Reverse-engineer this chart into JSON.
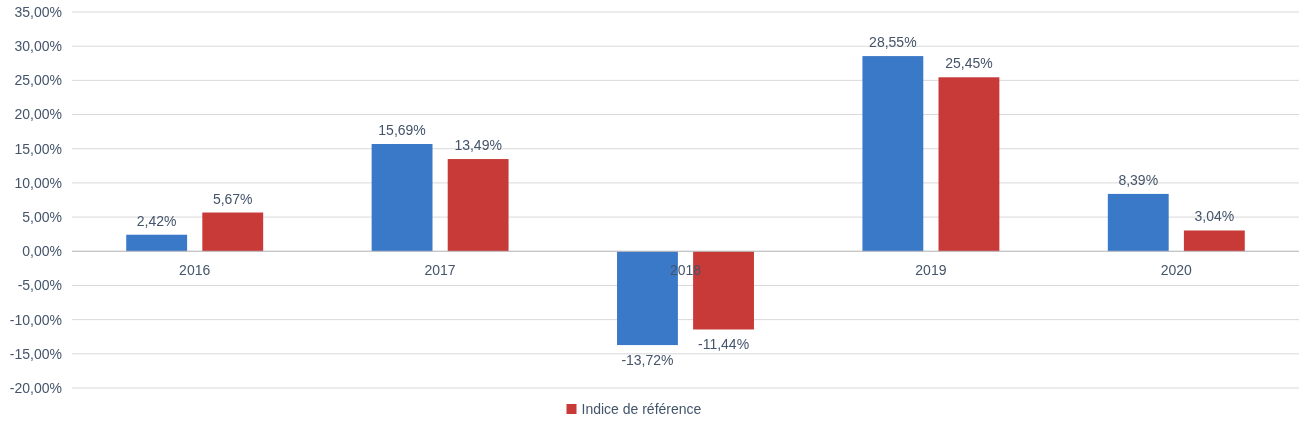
{
  "chart_data": {
    "type": "bar",
    "categories": [
      "2016",
      "2017",
      "2018",
      "2019",
      "2020"
    ],
    "series": [
      {
        "color": "#3a78c8",
        "values": [
          2.42,
          15.69,
          -13.72,
          28.55,
          8.39
        ],
        "value_labels": [
          "2,42%",
          "15,69%",
          "-13,72%",
          "28,55%",
          "8,39%"
        ]
      },
      {
        "name": "Indice de référence",
        "color": "#c83a38",
        "values": [
          5.67,
          13.49,
          -11.44,
          25.45,
          3.04
        ],
        "value_labels": [
          "5,67%",
          "13,49%",
          "-11,44%",
          "25,45%",
          "3,04%"
        ]
      }
    ],
    "ylim": [
      -20,
      35
    ],
    "yticks": [
      {
        "value": -20,
        "label": "-20,00%"
      },
      {
        "value": -15,
        "label": "-15,00%"
      },
      {
        "value": -10,
        "label": "-10,00%"
      },
      {
        "value": -5,
        "label": "-5,00%"
      },
      {
        "value": 0,
        "label": "0,00%"
      },
      {
        "value": 5,
        "label": "5,00%"
      },
      {
        "value": 10,
        "label": "10,00%"
      },
      {
        "value": 15,
        "label": "15,00%"
      },
      {
        "value": 20,
        "label": "20,00%"
      },
      {
        "value": 25,
        "label": "25,00%"
      },
      {
        "value": 30,
        "label": "30,00%"
      },
      {
        "value": 35,
        "label": "35,00%"
      }
    ],
    "grid": "y",
    "legend": "bottom"
  }
}
